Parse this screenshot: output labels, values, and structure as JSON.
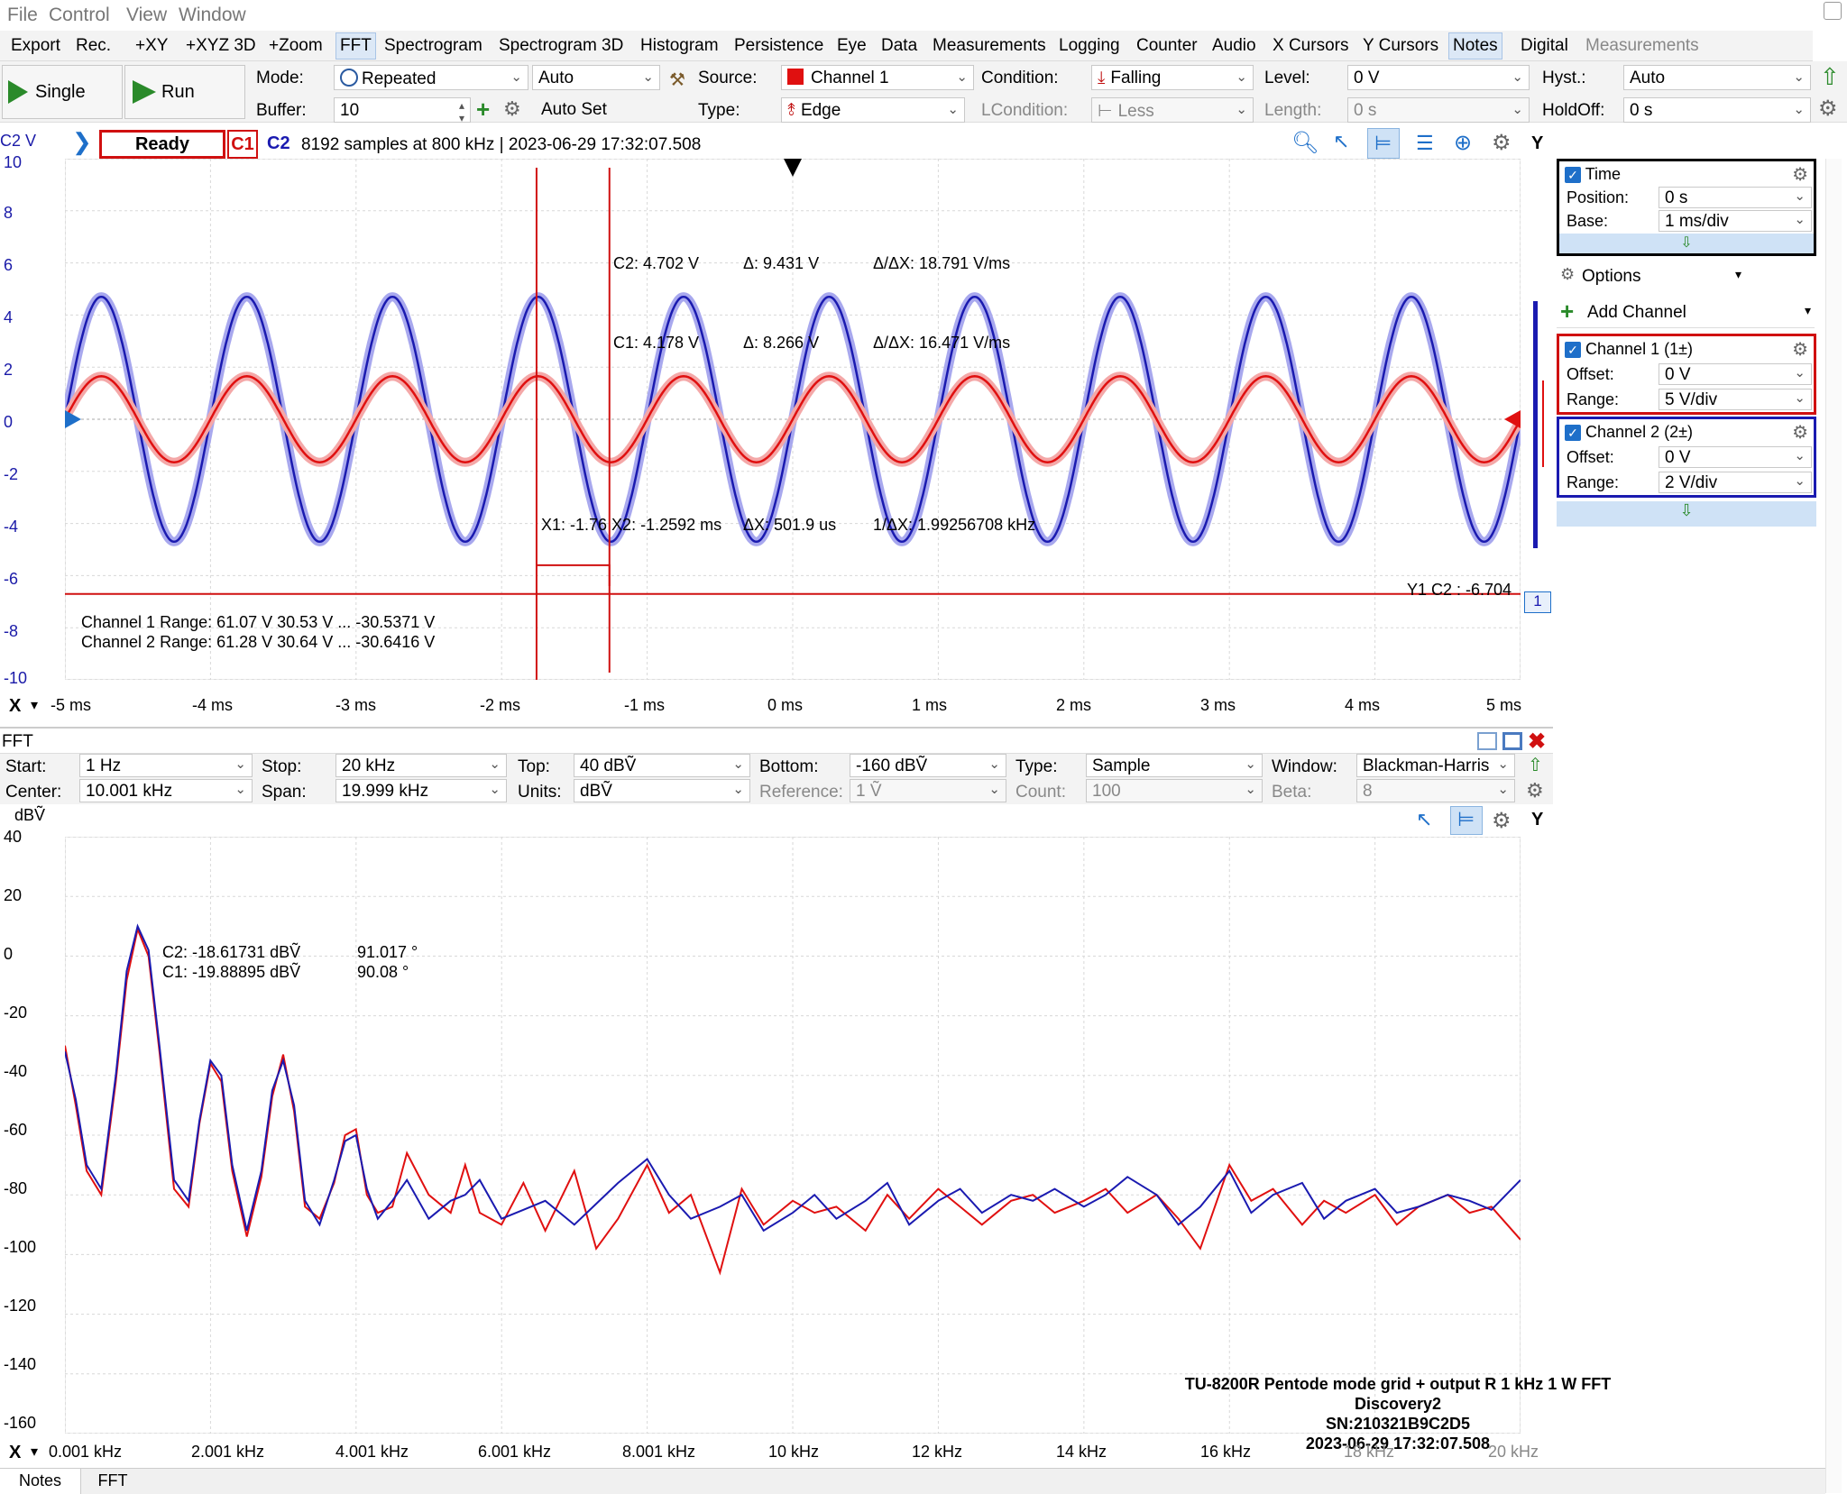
{
  "menu": [
    "File",
    "Control",
    "View",
    "Window"
  ],
  "tabs": [
    "Export",
    "Rec.",
    "+XY",
    "+XYZ 3D",
    "+Zoom",
    "FFT",
    "Spectrogram",
    "Spectrogram 3D",
    "Histogram",
    "Persistence",
    "Eye",
    "Data",
    "Measurements",
    "Logging",
    "Counter",
    "Audio",
    "X Cursors",
    "Y Cursors",
    "Notes",
    "Digital",
    "Measurements"
  ],
  "toolbar": {
    "single": "Single",
    "run": "Run",
    "mode_label": "Mode:",
    "mode": "Repeated",
    "auto": "Auto",
    "buffer_label": "Buffer:",
    "buffer": "10",
    "autoset": "Auto Set",
    "source_label": "Source:",
    "source": "Channel 1",
    "type_label": "Type:",
    "type": "Edge",
    "condition_label": "Condition:",
    "condition": "Falling",
    "lcondition_label": "LCondition:",
    "lcondition": "Less",
    "level_label": "Level:",
    "level": "0 V",
    "length_label": "Length:",
    "length": "0 s",
    "hyst_label": "Hyst.:",
    "hyst": "Auto",
    "holdoff_label": "HoldOff:",
    "holdoff": "0 s"
  },
  "scope": {
    "y_unit": "C2 V",
    "status": "Ready",
    "c1": "C1",
    "c2": "C2",
    "info": "8192 samples at 800 kHz | 2023-06-29 17:32:07.508",
    "y_btn": "Y",
    "y_ticks": [
      "10",
      "8",
      "6",
      "4",
      "2",
      "0",
      "-2",
      "-4",
      "-6",
      "-8",
      "-10"
    ],
    "x_ticks": [
      "-5 ms",
      "-4 ms",
      "-3 ms",
      "-2 ms",
      "-1 ms",
      "0 ms",
      "1 ms",
      "2 ms",
      "3 ms",
      "4 ms",
      "5 ms"
    ],
    "x_axis": "X",
    "cursor_c2": "C2: 4.702 V",
    "cursor_d2": "Δ: 9.431 V",
    "cursor_dd2": "Δ/ΔX: 18.791 V/ms",
    "cursor_c1": "C1: 4.178 V",
    "cursor_d1": "Δ: 8.266 V",
    "cursor_dd1": "Δ/ΔX: 16.471 V/ms",
    "cursor_x": "X1: -1.76 X2: -1.2592 ms",
    "cursor_dx": "ΔX: 501.9 us",
    "cursor_inv": "1/ΔX: 1.99256708 kHz",
    "ycursor": "Y1 C2 : -6.704",
    "ycursor_idx": "1",
    "range1": "Channel 1  Range: 61.07 V  30.53 V ... -30.5371 V",
    "range2": "Channel 2  Range: 61.28 V  30.64 V ... -30.6416 V"
  },
  "side": {
    "time": "Time",
    "position_label": "Position:",
    "position": "0 s",
    "base_label": "Base:",
    "base": "1 ms/div",
    "options": "Options",
    "add_channel": "Add Channel",
    "ch1": "Channel 1 (1±)",
    "ch1_offset_label": "Offset:",
    "ch1_offset": "0 V",
    "ch1_range_label": "Range:",
    "ch1_range": "5 V/div",
    "ch2": "Channel 2 (2±)",
    "ch2_offset_label": "Offset:",
    "ch2_offset": "0 V",
    "ch2_range_label": "Range:",
    "ch2_range": "2 V/div"
  },
  "fft": {
    "title": "FFT",
    "start_label": "Start:",
    "start": "1 Hz",
    "stop_label": "Stop:",
    "stop": "20 kHz",
    "top_label": "Top:",
    "top": "40 dBṼ",
    "bottom_label": "Bottom:",
    "bottom": "-160 dBṼ",
    "type_label": "Type:",
    "type": "Sample",
    "window_label": "Window:",
    "window": "Blackman-Harris",
    "center_label": "Center:",
    "center": "10.001 kHz",
    "span_label": "Span:",
    "span": "19.999 kHz",
    "units_label": "Units:",
    "units": "dBṼ",
    "reference_label": "Reference:",
    "reference": "1 Ṽ",
    "count_label": "Count:",
    "count": "100",
    "beta_label": "Beta:",
    "beta": "8",
    "y_unit": "dBṼ",
    "y_btn": "Y",
    "y_ticks": [
      "40",
      "20",
      "0",
      "-20",
      "-40",
      "-60",
      "-80",
      "-100",
      "-120",
      "-140",
      "-160"
    ],
    "x_ticks": [
      "0.001 kHz",
      "2.001 kHz",
      "4.001 kHz",
      "6.001 kHz",
      "8.001 kHz",
      "10 kHz",
      "12 kHz",
      "14 kHz",
      "16 kHz",
      "18 kHz",
      "20 kHz"
    ],
    "x_axis": "X",
    "c2": "C2: -18.61731 dBṼ",
    "c2_phase": "91.017 °",
    "c1": "C1: -19.88895 dBṼ",
    "c1_phase": "90.08 °",
    "note1": "TU-8200R Pentode mode grid + output R 1 kHz 1 W FFT",
    "note2": "Discovery2",
    "note3": "SN:210321B9C2D5",
    "note4": "2023-06-29 17:32:07.508"
  },
  "bottom_tabs": [
    "Notes",
    "FFT"
  ],
  "colors": {
    "c1": "#e01010",
    "c2": "#1a1ab0",
    "accent": "#2a8a2a"
  },
  "chart_data": [
    {
      "type": "line",
      "title": "",
      "xlabel": "",
      "ylabel": "C2 V",
      "xlim": [
        -5,
        5
      ],
      "ylim": [
        -10,
        10
      ],
      "series": [
        {
          "name": "C1",
          "amplitude": 1.65,
          "frequency_khz": 1.0,
          "phase": "sine, zero crossing rising at -5 ms"
        },
        {
          "name": "C2",
          "amplitude": 4.7,
          "frequency_khz": 1.0,
          "phase": "sine, zero crossing rising at -5 ms"
        }
      ]
    },
    {
      "type": "line",
      "title": "",
      "xlabel": "",
      "ylabel": "dBṼ",
      "xlim": [
        0.001,
        20
      ],
      "ylim": [
        -160,
        40
      ],
      "x": [
        0.001,
        0.15,
        0.3,
        0.5,
        0.7,
        0.85,
        1.0,
        1.15,
        1.3,
        1.5,
        1.7,
        1.85,
        2.0,
        2.15,
        2.3,
        2.5,
        2.7,
        2.85,
        3.0,
        3.15,
        3.3,
        3.5,
        3.7,
        3.85,
        4.0,
        4.15,
        4.3,
        4.5,
        4.7,
        5.0,
        5.3,
        5.5,
        5.7,
        6.0,
        6.3,
        6.6,
        7.0,
        7.3,
        7.6,
        8.0,
        8.3,
        8.6,
        9.0,
        9.3,
        9.6,
        10.0,
        10.3,
        10.6,
        11.0,
        11.3,
        11.6,
        12.0,
        12.3,
        12.6,
        13.0,
        13.3,
        13.6,
        14.0,
        14.3,
        14.6,
        15.0,
        15.3,
        15.6,
        16.0,
        16.3,
        16.6,
        17.0,
        17.3,
        17.6,
        18.0,
        18.3,
        18.6,
        19.0,
        19.3,
        19.6,
        20.0
      ],
      "series": [
        {
          "name": "C2",
          "values": [
            -32,
            -48,
            -70,
            -78,
            -40,
            -5,
            10,
            2,
            -30,
            -75,
            -82,
            -55,
            -35,
            -40,
            -70,
            -92,
            -72,
            -45,
            -35,
            -50,
            -82,
            -90,
            -75,
            -62,
            -60,
            -78,
            -88,
            -82,
            -75,
            -88,
            -82,
            -80,
            -75,
            -88,
            -85,
            -82,
            -90,
            -83,
            -76,
            -68,
            -80,
            -88,
            -84,
            -80,
            -92,
            -86,
            -80,
            -88,
            -82,
            -76,
            -90,
            -82,
            -78,
            -86,
            -80,
            -82,
            -78,
            -84,
            -80,
            -74,
            -80,
            -90,
            -84,
            -72,
            -86,
            -80,
            -76,
            -88,
            -82,
            -78,
            -86,
            -84,
            -80,
            -82,
            -85,
            -75
          ]
        },
        {
          "name": "C1",
          "values": [
            -30,
            -50,
            -72,
            -80,
            -42,
            -8,
            9,
            0,
            -32,
            -78,
            -84,
            -56,
            -36,
            -42,
            -72,
            -94,
            -74,
            -47,
            -33,
            -52,
            -84,
            -88,
            -76,
            -60,
            -58,
            -80,
            -86,
            -84,
            -66,
            -80,
            -86,
            -70,
            -86,
            -90,
            -76,
            -92,
            -72,
            -98,
            -88,
            -70,
            -86,
            -80,
            -106,
            -78,
            -90,
            -82,
            -86,
            -84,
            -92,
            -80,
            -88,
            -78,
            -84,
            -90,
            -82,
            -80,
            -86,
            -82,
            -78,
            -86,
            -80,
            -88,
            -98,
            -70,
            -82,
            -78,
            -90,
            -82,
            -86,
            -80,
            -90,
            -84,
            -80,
            -86,
            -84,
            -95
          ]
        }
      ]
    }
  ]
}
